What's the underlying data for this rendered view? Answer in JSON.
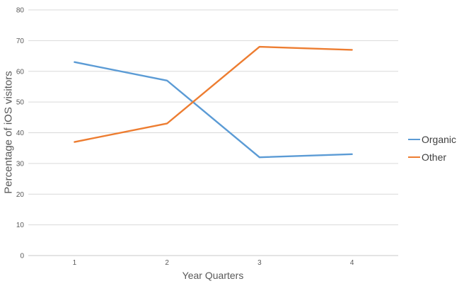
{
  "chart_data": {
    "type": "line",
    "xlabel": "Year Quarters",
    "ylabel": "Percentage of iOS visitors",
    "categories": [
      "1",
      "2",
      "3",
      "4"
    ],
    "series": [
      {
        "name": "Organic",
        "color": "#5B9BD5",
        "values": [
          63,
          57,
          32,
          33
        ]
      },
      {
        "name": "Other",
        "color": "#ED7D31",
        "values": [
          37,
          43,
          68,
          67
        ]
      }
    ],
    "ylim": [
      0,
      80
    ],
    "yticks": [
      0,
      10,
      20,
      30,
      40,
      50,
      60,
      70,
      80
    ],
    "grid": "horizontal-only",
    "legend_position": "right",
    "colors": {
      "background": "#ffffff",
      "gridline": "#d9d9d9",
      "axis_line": "#c8c8c8",
      "tick_label": "#595959",
      "axis_title": "#595959",
      "legend_text": "#3f3f3f"
    }
  }
}
